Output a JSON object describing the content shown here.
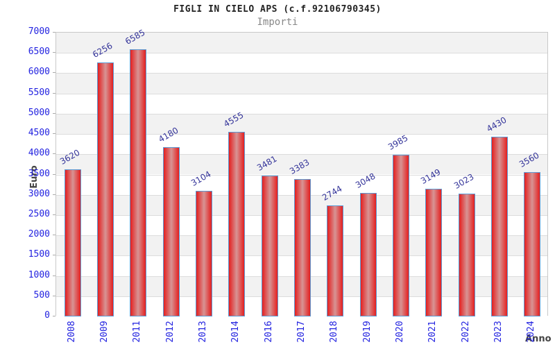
{
  "header": {
    "title": "FIGLI IN CIELO APS (c.f.92106790345)",
    "subtitle": "Importi"
  },
  "chart_data": {
    "type": "bar",
    "title": "FIGLI IN CIELO APS (c.f.92106790345)",
    "subtitle": "Importi",
    "xlabel": "Anno",
    "ylabel": "Euro",
    "categories": [
      "2008",
      "2009",
      "2011",
      "2012",
      "2013",
      "2014",
      "2016",
      "2017",
      "2018",
      "2019",
      "2020",
      "2021",
      "2022",
      "2023",
      "2024"
    ],
    "values": [
      3620,
      6256,
      6585,
      4180,
      3104,
      4555,
      3481,
      3383,
      2744,
      3048,
      3985,
      3149,
      3023,
      4430,
      3560
    ],
    "value_labels": [
      "3620",
      "6256",
      "6585",
      "4180",
      "3104",
      "4555",
      "3481",
      "3383",
      "2744",
      "3048",
      "3985",
      "3149",
      "3023",
      "4430",
      "3560"
    ],
    "ylim": [
      0,
      7000
    ],
    "ytick_step": 500,
    "yticks": [
      0,
      500,
      1000,
      1500,
      2000,
      2500,
      3000,
      3500,
      4000,
      4500,
      5000,
      5500,
      6000,
      6500,
      7000
    ],
    "grid": "horizontal-bands-alternating",
    "legend": "none",
    "colors": {
      "bar_fill": "#e41f1f",
      "bar_highlight": "#d79494",
      "bar_border": "#5b9bd5",
      "tick_label": "#2222e0",
      "value_label": "#333399",
      "band_gray": "#f2f2f2",
      "band_white": "#ffffff",
      "gridline": "#dcdcdc",
      "tick_mark": "#aaaaaa",
      "axis_title": "#444444",
      "title": "#222222",
      "subtitle": "#888888"
    }
  }
}
